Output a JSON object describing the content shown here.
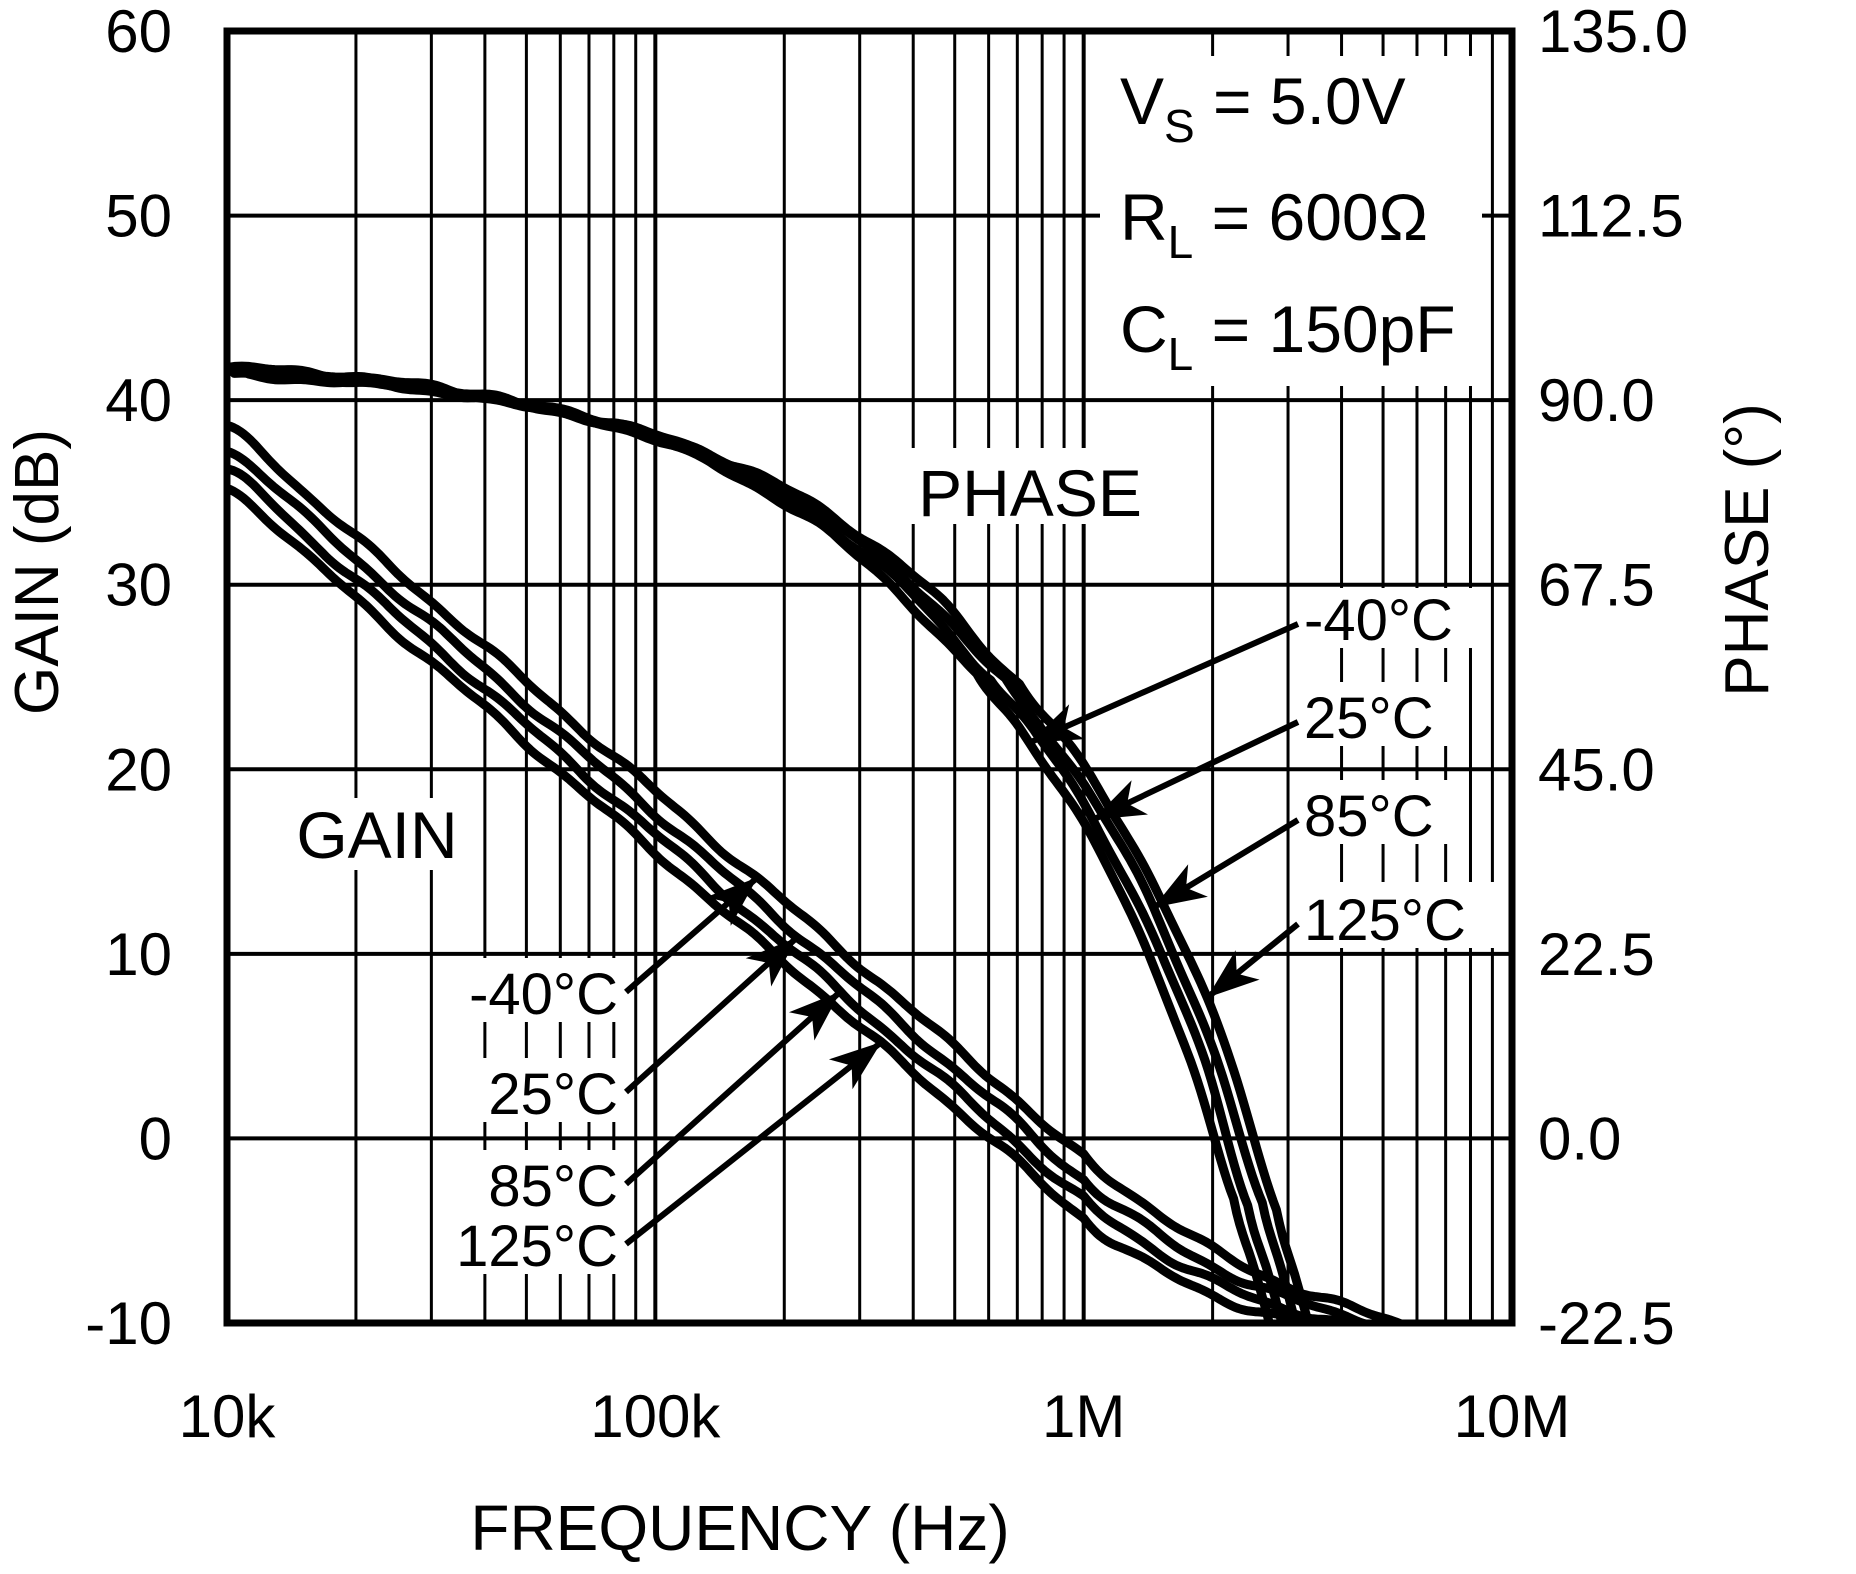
{
  "chart_data": {
    "type": "line",
    "title": "",
    "x_axis": {
      "label": "FREQUENCY (Hz)",
      "scale": "log",
      "min": 10000,
      "max": 10000000,
      "tick_labels": [
        "10k",
        "100k",
        "1M",
        "10M"
      ],
      "tick_values": [
        10000,
        100000,
        1000000,
        10000000
      ],
      "minor_gridlines": true
    },
    "y_axis_left": {
      "label": "GAIN (dB)",
      "min": -10,
      "max": 60,
      "step": 10,
      "tick_labels": [
        "60",
        "50",
        "40",
        "30",
        "20",
        "10",
        "0",
        "-10"
      ]
    },
    "y_axis_right": {
      "label": "PHASE (°)",
      "min": -22.5,
      "max": 135,
      "step": 22.5,
      "tick_labels": [
        "135.0",
        "112.5",
        "90.0",
        "67.5",
        "45.0",
        "22.5",
        "0.0",
        "-22.5"
      ]
    },
    "grid": {
      "x_minor": true,
      "y_minor": false
    },
    "line_color": "#000000",
    "conditions": [
      {
        "base": "V",
        "sub": "S",
        "rest": " = 5.0V"
      },
      {
        "base": "R",
        "sub": "L",
        "rest": " = 600Ω"
      },
      {
        "base": "C",
        "sub": "L",
        "rest": " = 150pF"
      }
    ],
    "gain_series": [
      {
        "name": "-40°C",
        "points": [
          [
            4.0,
            38.5
          ],
          [
            4.2,
            34.6
          ],
          [
            4.4,
            30.6
          ],
          [
            4.6,
            26.7
          ],
          [
            4.8,
            22.7
          ],
          [
            5.0,
            18.8
          ],
          [
            5.2,
            14.8
          ],
          [
            5.4,
            10.9
          ],
          [
            5.6,
            6.9
          ],
          [
            5.8,
            3.0
          ],
          [
            6.0,
            -1.0
          ],
          [
            6.1,
            -2.8
          ],
          [
            6.2,
            -4.5
          ],
          [
            6.3,
            -6.0
          ],
          [
            6.4,
            -7.2
          ],
          [
            6.5,
            -8.2
          ],
          [
            6.6,
            -9.0
          ],
          [
            6.7,
            -9.7
          ],
          [
            6.78,
            -10.3
          ]
        ]
      },
      {
        "name": "25°C",
        "points": [
          [
            4.0,
            37.3
          ],
          [
            4.2,
            33.4
          ],
          [
            4.4,
            29.4
          ],
          [
            4.6,
            25.5
          ],
          [
            4.8,
            21.5
          ],
          [
            5.0,
            17.6
          ],
          [
            5.2,
            13.6
          ],
          [
            5.4,
            9.7
          ],
          [
            5.6,
            5.7
          ],
          [
            5.8,
            1.8
          ],
          [
            6.0,
            -2.2
          ],
          [
            6.1,
            -4.0
          ],
          [
            6.2,
            -5.6
          ],
          [
            6.3,
            -6.9
          ],
          [
            6.4,
            -8.0
          ],
          [
            6.5,
            -8.8
          ],
          [
            6.6,
            -9.5
          ],
          [
            6.7,
            -10.1
          ],
          [
            6.75,
            -10.4
          ]
        ]
      },
      {
        "name": "85°C",
        "points": [
          [
            4.0,
            36.2
          ],
          [
            4.2,
            32.3
          ],
          [
            4.4,
            28.3
          ],
          [
            4.6,
            24.4
          ],
          [
            4.8,
            20.4
          ],
          [
            5.0,
            16.5
          ],
          [
            5.2,
            12.5
          ],
          [
            5.4,
            8.6
          ],
          [
            5.6,
            4.6
          ],
          [
            5.8,
            0.7
          ],
          [
            6.0,
            -3.3
          ],
          [
            6.1,
            -5.0
          ],
          [
            6.2,
            -6.5
          ],
          [
            6.3,
            -7.7
          ],
          [
            6.4,
            -8.7
          ],
          [
            6.5,
            -9.4
          ],
          [
            6.6,
            -10.0
          ],
          [
            6.65,
            -10.3
          ]
        ]
      },
      {
        "name": "125°C",
        "points": [
          [
            4.0,
            35.2
          ],
          [
            4.2,
            31.3
          ],
          [
            4.4,
            27.3
          ],
          [
            4.6,
            23.4
          ],
          [
            4.8,
            19.4
          ],
          [
            5.0,
            15.5
          ],
          [
            5.2,
            11.5
          ],
          [
            5.4,
            7.6
          ],
          [
            5.6,
            3.6
          ],
          [
            5.8,
            -0.3
          ],
          [
            6.0,
            -4.3
          ],
          [
            6.1,
            -6.0
          ],
          [
            6.2,
            -7.4
          ],
          [
            6.3,
            -8.5
          ],
          [
            6.4,
            -9.3
          ],
          [
            6.5,
            -9.9
          ],
          [
            6.6,
            -10.5
          ]
        ]
      }
    ],
    "phase_baseline": [
      [
        4.0,
        93.5
      ],
      [
        4.2,
        92.9
      ],
      [
        4.4,
        91.9
      ],
      [
        4.6,
        90.4
      ],
      [
        4.8,
        88.3
      ],
      [
        5.0,
        85.5
      ],
      [
        5.2,
        81.2
      ],
      [
        5.4,
        75.2
      ],
      [
        5.6,
        67.0
      ],
      [
        5.8,
        56.0
      ],
      [
        5.9,
        49.5
      ],
      [
        6.0,
        42.0
      ],
      [
        6.1,
        33.0
      ],
      [
        6.2,
        22.0
      ],
      [
        6.3,
        9.0
      ],
      [
        6.4,
        -8.0
      ],
      [
        6.45,
        -17.0
      ],
      [
        6.5,
        -27.0
      ],
      [
        6.56,
        -40.0
      ]
    ],
    "phase_series": [
      {
        "name": "-40°C",
        "logf_shift": -0.05,
        "phase_offset": 0.6
      },
      {
        "name": "25°C",
        "logf_shift": -0.017,
        "phase_offset": 0.2
      },
      {
        "name": "85°C",
        "logf_shift": 0.017,
        "phase_offset": -0.2
      },
      {
        "name": "125°C",
        "logf_shift": 0.05,
        "phase_offset": -0.6
      }
    ]
  },
  "annotations": {
    "gain_group_label": "GAIN",
    "phase_group_label": "PHASE",
    "gain_temp_labels": [
      {
        "text": "-40°C",
        "target_gain": 14.0
      },
      {
        "text": "25°C",
        "target_gain": 11.0
      },
      {
        "text": "85°C",
        "target_gain": 8.0
      },
      {
        "text": "125°C",
        "target_gain": 5.0
      }
    ],
    "phase_temp_labels": [
      {
        "text": "-40°C",
        "target_phase": 48.5
      },
      {
        "text": "25°C",
        "target_phase": 39.0
      },
      {
        "text": "85°C",
        "target_phase": 28.0
      },
      {
        "text": "125°C",
        "target_phase": 16.5
      }
    ]
  }
}
